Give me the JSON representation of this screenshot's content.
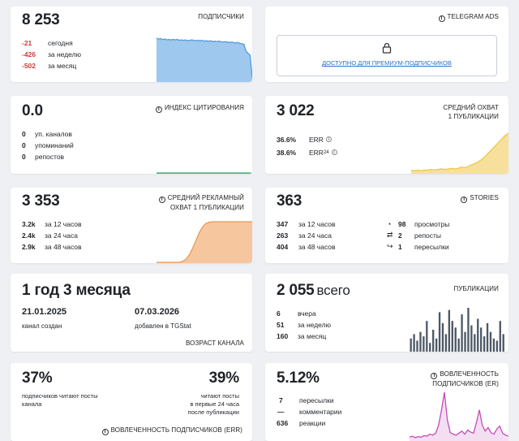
{
  "colors": {
    "blue": "#4f9be0",
    "green": "#3aa56a",
    "yellow": "#f0c64a",
    "orange": "#ee9950",
    "gray": "#4d5866",
    "pink": "#c24bb8",
    "red": "#d03a3a"
  },
  "subscribers": {
    "value": "8 253",
    "label": "ПОДПИСЧИКИ",
    "rows": [
      {
        "value": "-21",
        "label": "сегодня"
      },
      {
        "value": "-426",
        "label": "за неделю"
      },
      {
        "value": "-502",
        "label": "за месяц"
      }
    ]
  },
  "ads": {
    "label": "TELEGRAM ADS",
    "icon": "info-icon",
    "lock_icon": "lock-icon",
    "link": "ДОСТУПНО ДЛЯ ПРЕМИУМ-ПОДПИСЧИКОВ"
  },
  "citation": {
    "value": "0.0",
    "label": "ИНДЕКС ЦИТИРОВАНИЯ",
    "rows": [
      {
        "value": "0",
        "label": "уп. каналов"
      },
      {
        "value": "0",
        "label": "упоминаний"
      },
      {
        "value": "0",
        "label": "репостов"
      }
    ]
  },
  "reach": {
    "value": "3 022",
    "label_line1": "СРЕДНИЙ ОХВАТ",
    "label_line2": "1 ПУБЛИКАЦИИ",
    "rows": [
      {
        "value": "36.6%",
        "label": "ERR"
      },
      {
        "value": "38.6%",
        "label": "ERR",
        "sub": "24"
      }
    ]
  },
  "ad_reach": {
    "value": "3 353",
    "label_line1": "СРЕДНИЙ РЕКЛАМНЫЙ",
    "label_line2": "ОХВАТ 1 ПУБЛИКАЦИИ",
    "rows": [
      {
        "value": "3.2k",
        "label": "за 12 часов"
      },
      {
        "value": "2.4k",
        "label": "за 24 часа"
      },
      {
        "value": "2.9k",
        "label": "за 48 часов"
      }
    ]
  },
  "stories": {
    "value": "363",
    "label": "STORIES",
    "rows": [
      {
        "value": "347",
        "label": "за 12 часов"
      },
      {
        "value": "263",
        "label": "за 24 часа"
      },
      {
        "value": "404",
        "label": "за 48 часов"
      }
    ],
    "stats": [
      {
        "icon": "views-icon",
        "value": "98",
        "label": "просмотры"
      },
      {
        "icon": "reposts-icon",
        "value": "2",
        "label": "репосты"
      },
      {
        "icon": "forwards-icon",
        "value": "1",
        "label": "пересылки"
      }
    ]
  },
  "age": {
    "value": "1 год 3 месяца",
    "created_date": "21.01.2025",
    "created_label": "канал создан",
    "added_date": "07.03.2026",
    "added_label": "добавлен в TGStat",
    "label": "ВОЗРАСТ КАНАЛА"
  },
  "posts": {
    "value": "2 055",
    "suffix": "всего",
    "label": "ПУБЛИКАЦИИ",
    "rows": [
      {
        "value": "6",
        "label": "вчера"
      },
      {
        "value": "51",
        "label": "за неделю"
      },
      {
        "value": "160",
        "label": "за месяц"
      }
    ]
  },
  "engagement": {
    "left_value": "37%",
    "left_line1": "подписчиков читают посты",
    "left_line2": "канала",
    "right_value": "39%",
    "right_line1": "читают посты",
    "right_line2": "в первые 24 часа",
    "right_line3": "после публикации",
    "footer": "ВОВЛЕЧЕННОСТЬ ПОДПИСЧИКОВ (ERR)"
  },
  "er": {
    "value": "5.12%",
    "label_line1": "ВОВЛЕЧЕННОСТЬ",
    "label_line2": "ПОДПИСЧИКОВ (ER)",
    "rows": [
      {
        "value": "7",
        "label": "пересылки"
      },
      {
        "value": "—",
        "label": "комментарии"
      },
      {
        "value": "636",
        "label": "реакции"
      }
    ]
  },
  "chart_data": [
    {
      "name": "subscribers",
      "type": "area",
      "values": [
        100,
        98,
        99,
        97,
        98,
        96,
        97,
        96,
        97,
        96,
        97,
        95,
        96,
        95,
        96,
        94,
        95,
        96,
        95,
        94,
        95,
        94,
        95,
        93,
        94,
        93,
        94,
        92,
        93,
        92,
        93,
        92,
        91,
        92,
        91,
        90,
        91,
        90,
        89,
        90,
        88,
        87,
        86,
        70,
        65,
        60,
        8
      ]
    },
    {
      "name": "citation",
      "type": "area",
      "values": [
        0,
        0,
        0,
        0,
        0,
        0,
        0,
        0,
        0,
        0,
        0,
        0,
        0,
        0,
        0,
        0,
        0,
        0,
        0,
        0,
        0,
        0,
        0,
        0,
        0,
        0,
        0,
        0,
        0,
        0
      ]
    },
    {
      "name": "reach",
      "type": "area",
      "values": [
        5,
        4,
        5,
        4,
        5,
        5,
        6,
        5,
        6,
        7,
        6,
        7,
        8,
        7,
        8,
        10,
        9,
        11,
        14,
        16,
        19,
        23,
        28,
        34,
        40,
        46,
        52,
        58,
        64,
        68
      ]
    },
    {
      "name": "ad_reach",
      "type": "area",
      "values": [
        0,
        0,
        0,
        0,
        0,
        0,
        0,
        0,
        2,
        6,
        14,
        26,
        40,
        54,
        64,
        70,
        72,
        73,
        73,
        73,
        73,
        73,
        73,
        73,
        73,
        73,
        73,
        73,
        73,
        73
      ]
    },
    {
      "name": "posts",
      "type": "bar",
      "values": [
        30,
        40,
        25,
        45,
        35,
        70,
        20,
        50,
        30,
        90,
        65,
        40,
        95,
        70,
        55,
        30,
        85,
        45,
        100,
        60,
        40,
        75,
        55,
        35,
        65,
        45,
        30,
        25,
        70,
        40
      ]
    },
    {
      "name": "er",
      "type": "line",
      "values": [
        6,
        8,
        5,
        7,
        6,
        9,
        8,
        12,
        10,
        14,
        30,
        60,
        95,
        40,
        15,
        12,
        10,
        14,
        18,
        12,
        20,
        16,
        14,
        35,
        60,
        30,
        18,
        25,
        15,
        12,
        22,
        28,
        14,
        10,
        8
      ]
    }
  ]
}
